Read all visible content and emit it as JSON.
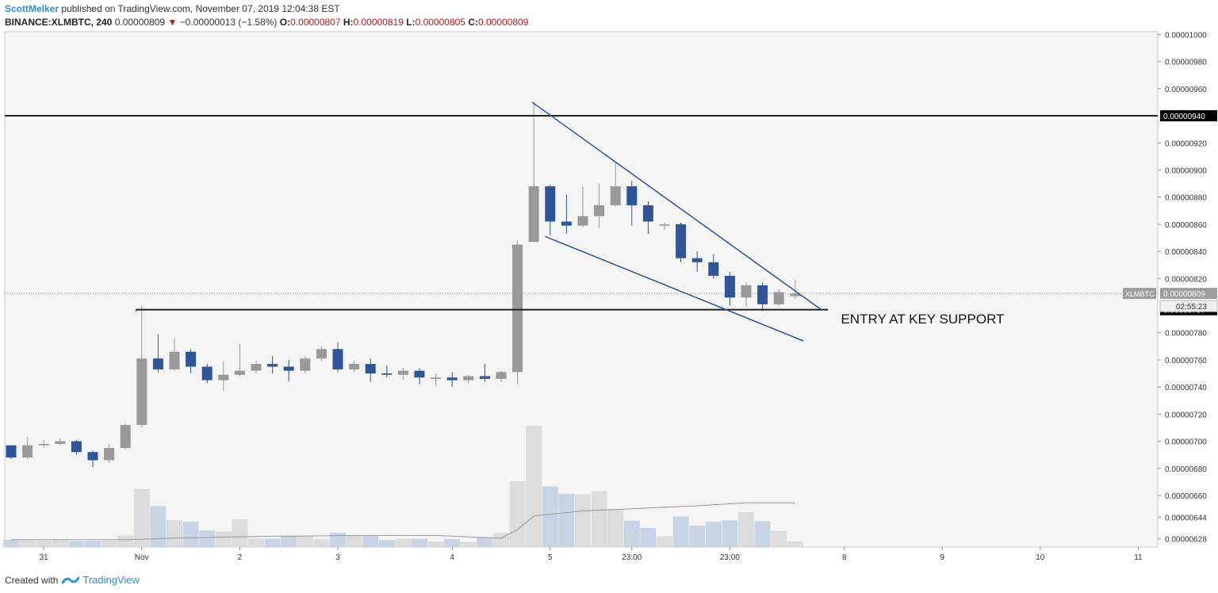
{
  "header": {
    "author": "ScottMelker",
    "published": " published on TradingView.com, November 07, 2019 12:04:38 EST",
    "symbol": "BINANCE:XLMBTC, 240",
    "last": " 0.00000809 ",
    "change_arrow": "▼",
    "change": " −0.00000013 (−1.58%) ",
    "o_label": "O:",
    "o_val": "0.00000807 ",
    "h_label": "H:",
    "h_val": "0.00000819 ",
    "l_label": "L:",
    "l_val": "0.00000805 ",
    "c_label": "C:",
    "c_val": "0.00000809"
  },
  "footer": {
    "created": "Created with",
    "brand": "TradingView"
  },
  "colors": {
    "up": "#999999",
    "down": "#2e5597",
    "volume_up": "#dcdcdc",
    "volume_down": "#c9d3e6",
    "trendline": "#2e5597",
    "level": "#222222",
    "plot_bg": "#f5f5f5"
  },
  "chart_data": {
    "type": "candlestick",
    "ylim": [
      6.22e-06,
      1.002e-05
    ],
    "y_ticks": [
      "0.00000628",
      "0.00000644",
      "0.00000660",
      "0.00000680",
      "0.00000700",
      "0.00000720",
      "0.00000740",
      "0.00000760",
      "0.00000780",
      "0.00000820",
      "0.00000840",
      "0.00000860",
      "0.00000880",
      "0.00000900",
      "0.00000920",
      "0.00000960",
      "0.00000980",
      "0.00001000"
    ],
    "y_tick_values": [
      628,
      644,
      660,
      680,
      700,
      720,
      740,
      760,
      780,
      820,
      840,
      860,
      880,
      900,
      920,
      960,
      980,
      1000
    ],
    "x_labels": [
      {
        "label": "31",
        "bar": 3
      },
      {
        "label": "Nov",
        "bar": 9
      },
      {
        "label": "2",
        "bar": 15
      },
      {
        "label": "3",
        "bar": 21
      },
      {
        "label": "4",
        "bar": 28
      },
      {
        "label": "5",
        "bar": 34
      },
      {
        "label": "23:00",
        "bar": 39
      },
      {
        "label": "23:00",
        "bar": 45
      },
      {
        "label": "8",
        "bar": 52
      },
      {
        "label": "9",
        "bar": 58
      },
      {
        "label": "10",
        "bar": 64
      },
      {
        "label": "11",
        "bar": 70
      }
    ],
    "value_scale": "1e-8 BTC",
    "candles": [
      [
        1,
        697,
        697,
        687,
        688
      ],
      [
        2,
        688,
        703,
        687,
        697
      ],
      [
        3,
        697,
        701,
        695,
        698
      ],
      [
        4,
        698,
        702,
        697,
        700
      ],
      [
        5,
        700,
        701,
        690,
        692
      ],
      [
        6,
        692,
        693,
        681,
        686
      ],
      [
        7,
        686,
        698,
        684,
        695
      ],
      [
        8,
        695,
        713,
        694,
        712
      ],
      [
        9,
        712,
        800,
        710,
        761
      ],
      [
        10,
        761,
        779,
        751,
        753
      ],
      [
        11,
        753,
        776,
        752,
        766
      ],
      [
        12,
        766,
        768,
        750,
        755
      ],
      [
        13,
        755,
        757,
        743,
        745
      ],
      [
        14,
        745,
        759,
        737,
        749
      ],
      [
        15,
        749,
        772,
        748,
        752
      ],
      [
        16,
        752,
        759,
        750,
        757
      ],
      [
        17,
        757,
        763,
        750,
        755
      ],
      [
        18,
        755,
        760,
        744,
        752
      ],
      [
        19,
        752,
        763,
        750,
        761
      ],
      [
        20,
        761,
        770,
        759,
        768
      ],
      [
        21,
        768,
        773,
        751,
        753
      ],
      [
        22,
        753,
        759,
        751,
        757
      ],
      [
        23,
        757,
        761,
        744,
        750
      ],
      [
        24,
        750,
        756,
        747,
        749
      ],
      [
        25,
        749,
        754,
        745,
        752
      ],
      [
        26,
        752,
        754,
        742,
        747
      ],
      [
        27,
        746,
        750,
        741,
        747
      ],
      [
        28,
        747,
        751,
        740,
        745
      ],
      [
        29,
        745,
        749,
        743,
        748
      ],
      [
        30,
        748,
        757,
        744,
        746
      ],
      [
        31,
        746,
        752,
        744,
        751
      ],
      [
        32,
        751,
        848,
        742,
        845
      ],
      [
        33,
        847,
        950,
        847,
        888
      ],
      [
        34,
        888,
        889,
        852,
        862
      ],
      [
        35,
        862,
        882,
        853,
        859
      ],
      [
        36,
        859,
        888,
        858,
        866
      ],
      [
        37,
        866,
        890,
        857,
        874
      ],
      [
        38,
        874,
        906,
        873,
        888
      ],
      [
        39,
        888,
        892,
        859,
        874
      ],
      [
        40,
        874,
        877,
        853,
        862
      ],
      [
        41,
        859,
        861,
        856,
        860
      ],
      [
        42,
        860,
        861,
        832,
        835
      ],
      [
        43,
        835,
        840,
        825,
        832
      ],
      [
        44,
        832,
        838,
        820,
        822
      ],
      [
        45,
        822,
        825,
        800,
        806
      ],
      [
        46,
        806,
        817,
        799,
        815
      ],
      [
        47,
        815,
        817,
        796,
        801
      ],
      [
        48,
        801,
        812,
        800,
        810
      ],
      [
        49,
        807,
        819,
        805,
        809
      ]
    ],
    "volume_max": 5000,
    "volume": [
      [
        1,
        270
      ],
      [
        2,
        250
      ],
      [
        3,
        240
      ],
      [
        4,
        280
      ],
      [
        5,
        220
      ],
      [
        6,
        230
      ],
      [
        7,
        240
      ],
      [
        8,
        430
      ],
      [
        9,
        2150
      ],
      [
        10,
        1520
      ],
      [
        11,
        1000
      ],
      [
        12,
        940
      ],
      [
        13,
        610
      ],
      [
        14,
        580
      ],
      [
        15,
        1040
      ],
      [
        16,
        320
      ],
      [
        17,
        310
      ],
      [
        18,
        410
      ],
      [
        19,
        390
      ],
      [
        20,
        290
      ],
      [
        21,
        530
      ],
      [
        22,
        430
      ],
      [
        23,
        430
      ],
      [
        24,
        260
      ],
      [
        25,
        310
      ],
      [
        26,
        300
      ],
      [
        27,
        210
      ],
      [
        28,
        300
      ],
      [
        29,
        190
      ],
      [
        30,
        360
      ],
      [
        31,
        520
      ],
      [
        32,
        2450
      ],
      [
        33,
        4500
      ],
      [
        34,
        2250
      ],
      [
        35,
        1980
      ],
      [
        36,
        1950
      ],
      [
        37,
        2070
      ],
      [
        38,
        1410
      ],
      [
        39,
        980
      ],
      [
        40,
        710
      ],
      [
        41,
        400
      ],
      [
        42,
        1130
      ],
      [
        43,
        800
      ],
      [
        44,
        940
      ],
      [
        45,
        990
      ],
      [
        46,
        1290
      ],
      [
        47,
        960
      ],
      [
        48,
        600
      ],
      [
        49,
        200
      ]
    ],
    "volume_ma": [
      [
        1,
        272
      ],
      [
        2,
        272
      ],
      [
        8,
        272
      ],
      [
        12,
        345
      ],
      [
        17,
        400
      ],
      [
        23,
        430
      ],
      [
        27,
        430
      ],
      [
        31,
        325
      ],
      [
        32,
        650
      ],
      [
        33,
        1150
      ],
      [
        36,
        1340
      ],
      [
        38,
        1390
      ],
      [
        40,
        1450
      ],
      [
        43,
        1530
      ],
      [
        46,
        1640
      ],
      [
        49,
        1640
      ]
    ],
    "levels": [
      {
        "name": "resistance",
        "value": 940,
        "from_bar": 0,
        "label": "0.00000940"
      },
      {
        "name": "support",
        "value": 797,
        "from_bar": 8.65,
        "to_bar": 51,
        "label": "0.00000797"
      }
    ],
    "trendlines": [
      {
        "name": "upper-wedge",
        "from": [
          32.9,
          950
        ],
        "to": [
          50.6,
          797
        ]
      },
      {
        "name": "lower-wedge",
        "from": [
          33.7,
          851
        ],
        "to": [
          49.5,
          774
        ]
      }
    ],
    "last_price": {
      "value": 809,
      "label": "0.00000809",
      "symbol": "XLMBTC",
      "countdown": "02:55:23"
    },
    "annotation": {
      "text": "ENTRY AT KEY SUPPORT",
      "bar": 51.8,
      "value": 787
    }
  }
}
